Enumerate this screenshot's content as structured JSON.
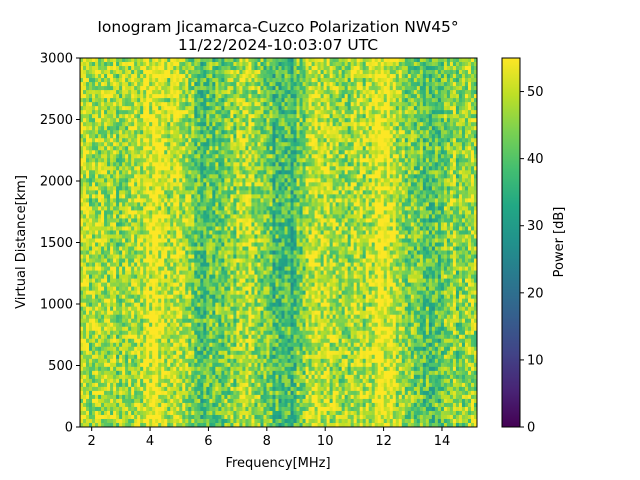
{
  "chart_data": {
    "type": "heatmap",
    "title_line1": "Ionogram Jicamarca-Cuzco Polarization NW45°",
    "title_line2": "11/22/2024-10:03:07 UTC",
    "xlabel": "Frequency[MHz]",
    "ylabel": "Virtual Distance[km]",
    "xlim": [
      1.6,
      15.2
    ],
    "ylim": [
      0,
      3000
    ],
    "xticks": [
      2,
      4,
      6,
      8,
      10,
      12,
      14
    ],
    "yticks": [
      0,
      500,
      1000,
      1500,
      2000,
      2500,
      3000
    ],
    "colorbar": {
      "label": "Power [dB]",
      "range": [
        0,
        55
      ],
      "ticks": [
        0,
        10,
        20,
        30,
        40,
        50
      ],
      "colormap": "viridis"
    },
    "grid": false,
    "power_profile": [
      {
        "freq": 1.6,
        "mean_power_db": 49
      },
      {
        "freq": 2.0,
        "mean_power_db": 47
      },
      {
        "freq": 2.5,
        "mean_power_db": 50
      },
      {
        "freq": 2.9,
        "mean_power_db": 46
      },
      {
        "freq": 3.3,
        "mean_power_db": 46
      },
      {
        "freq": 3.8,
        "mean_power_db": 51
      },
      {
        "freq": 4.2,
        "mean_power_db": 55
      },
      {
        "freq": 4.6,
        "mean_power_db": 48
      },
      {
        "freq": 5.0,
        "mean_power_db": 52
      },
      {
        "freq": 5.5,
        "mean_power_db": 42
      },
      {
        "freq": 5.9,
        "mean_power_db": 38
      },
      {
        "freq": 6.4,
        "mean_power_db": 44
      },
      {
        "freq": 6.9,
        "mean_power_db": 45
      },
      {
        "freq": 7.4,
        "mean_power_db": 51
      },
      {
        "freq": 8.0,
        "mean_power_db": 42
      },
      {
        "freq": 8.5,
        "mean_power_db": 36
      },
      {
        "freq": 8.9,
        "mean_power_db": 38
      },
      {
        "freq": 9.5,
        "mean_power_db": 49
      },
      {
        "freq": 10.5,
        "mean_power_db": 47
      },
      {
        "freq": 11.5,
        "mean_power_db": 49
      },
      {
        "freq": 12.0,
        "mean_power_db": 55
      },
      {
        "freq": 12.6,
        "mean_power_db": 46
      },
      {
        "freq": 13.2,
        "mean_power_db": 43
      },
      {
        "freq": 13.7,
        "mean_power_db": 40
      },
      {
        "freq": 14.3,
        "mean_power_db": 45
      },
      {
        "freq": 15.2,
        "mean_power_db": 46
      }
    ]
  }
}
